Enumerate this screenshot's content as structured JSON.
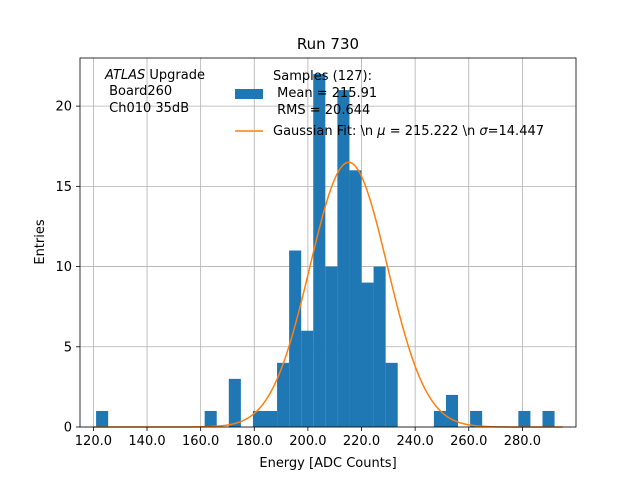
{
  "chart_data": {
    "type": "bar",
    "title": "Run 730",
    "xlabel": "Energy [ADC Counts]",
    "ylabel": "Entries",
    "xlim": [
      115,
      300
    ],
    "ylim": [
      0,
      23
    ],
    "grid": true,
    "bin_width": 4.5,
    "histogram": [
      {
        "x": 121.0,
        "count": 1
      },
      {
        "x": 161.5,
        "count": 1
      },
      {
        "x": 170.5,
        "count": 3
      },
      {
        "x": 179.5,
        "count": 1
      },
      {
        "x": 184.0,
        "count": 1
      },
      {
        "x": 188.5,
        "count": 4
      },
      {
        "x": 193.0,
        "count": 11
      },
      {
        "x": 197.5,
        "count": 6
      },
      {
        "x": 202.0,
        "count": 22
      },
      {
        "x": 206.5,
        "count": 10
      },
      {
        "x": 211.0,
        "count": 21
      },
      {
        "x": 215.5,
        "count": 16
      },
      {
        "x": 220.0,
        "count": 9
      },
      {
        "x": 224.5,
        "count": 10
      },
      {
        "x": 229.0,
        "count": 4
      },
      {
        "x": 247.0,
        "count": 1
      },
      {
        "x": 251.5,
        "count": 2
      },
      {
        "x": 260.5,
        "count": 1
      },
      {
        "x": 278.5,
        "count": 1
      },
      {
        "x": 287.5,
        "count": 1
      }
    ],
    "fit": {
      "mu": 215.222,
      "sigma": 14.447,
      "amplitude": 16.5
    },
    "x_ticks": [
      120,
      140,
      160,
      180,
      200,
      220,
      240,
      260,
      280
    ],
    "x_tick_labels": [
      "120.0",
      "140.0",
      "160.0",
      "180.0",
      "200.0",
      "220.0",
      "240.0",
      "260.0",
      "280.0"
    ],
    "y_ticks": [
      0,
      5,
      10,
      15,
      20
    ],
    "y_tick_labels": [
      "0",
      "5",
      "10",
      "15",
      "20"
    ],
    "annotation": {
      "line1_italic": "ATLAS",
      "line1_rest": " Upgrade",
      "line2": " Board260",
      "line3": " Ch010 35dB"
    },
    "legend": {
      "placement": "top-right",
      "samples_line1": "Samples (127):",
      "samples_line2": " Mean = 215.91",
      "samples_line3": " RMS = 20.644",
      "fit_label_prefix": "Gaussian Fit: \\n ",
      "fit_mu_symbol": "μ",
      "fit_label_mid": " = 215.222 \\n ",
      "fit_sigma_symbol": "σ",
      "fit_label_end": "=14.447"
    },
    "colors": {
      "bars": "#1f77b4",
      "fit": "#ff7f0e"
    }
  }
}
